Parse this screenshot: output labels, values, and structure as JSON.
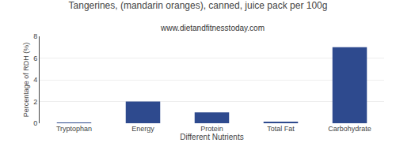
{
  "chart_data": {
    "type": "bar",
    "title": "Tangerines, (mandarin oranges), canned, juice pack per 100g",
    "subtitle": "www.dietandfitnesstoday.com",
    "xlabel": "Different Nutrients",
    "ylabel": "Percentage of RDH (%)",
    "categories": [
      "Tryptophan",
      "Energy",
      "Protein",
      "Total Fat",
      "Carbohydrate"
    ],
    "values": [
      0.03,
      2.0,
      1.0,
      0.1,
      7.0
    ],
    "color": "#2e4a8e",
    "ylim": [
      0,
      8
    ],
    "yticks": [
      0,
      2,
      4,
      6,
      8
    ],
    "grid": true
  }
}
